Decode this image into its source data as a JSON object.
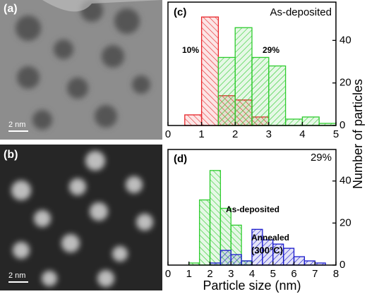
{
  "images": [
    {
      "label": "(a)",
      "scale": "2 nm"
    },
    {
      "label": "(b)",
      "scale": "2 nm"
    }
  ],
  "chart_data": [
    {
      "type": "histogram",
      "label": "(c)",
      "annotations": [
        "As-deposited"
      ],
      "xlim": [
        0,
        5
      ],
      "xticks": [
        0,
        1,
        2,
        3,
        4,
        5
      ],
      "ylim": [
        0,
        58
      ],
      "yticks": [
        0,
        20,
        40
      ],
      "series": [
        {
          "name": "10%",
          "color": "#e8262a",
          "bins": [
            0.5,
            1,
            1.5,
            2,
            2.5,
            3
          ],
          "values": [
            5,
            51,
            14,
            12,
            4
          ]
        },
        {
          "name": "29%",
          "color": "#2ecc2e",
          "bins": [
            1.5,
            2,
            2.5,
            3,
            3.5,
            4,
            4.5,
            5
          ],
          "values": [
            32,
            46,
            32,
            28,
            3,
            4,
            1
          ]
        }
      ]
    },
    {
      "type": "histogram",
      "label": "(d)",
      "annotations": [
        "29%",
        "(300°C)"
      ],
      "xlabel": "Particle size (nm)",
      "ylabel": "Number of particles",
      "xlim": [
        0,
        8
      ],
      "xticks": [
        0,
        1,
        2,
        3,
        4,
        5,
        6,
        7,
        8
      ],
      "ylim": [
        0,
        55
      ],
      "yticks": [
        0,
        20,
        40
      ],
      "series": [
        {
          "name": "As-deposited",
          "color": "#2ecc2e",
          "bins": [
            1,
            1.5,
            2,
            2.5,
            3,
            3.5,
            4
          ],
          "values": [
            1,
            31,
            45,
            27,
            19,
            2
          ]
        },
        {
          "name": "Annealed",
          "color": "#1a1acc",
          "bins": [
            2,
            2.5,
            3,
            3.5,
            4,
            4.5,
            5,
            5.5,
            6,
            6.5,
            7,
            7.5
          ],
          "values": [
            1,
            7,
            5,
            2,
            17,
            12,
            10,
            8,
            4,
            2,
            1
          ]
        }
      ]
    }
  ]
}
